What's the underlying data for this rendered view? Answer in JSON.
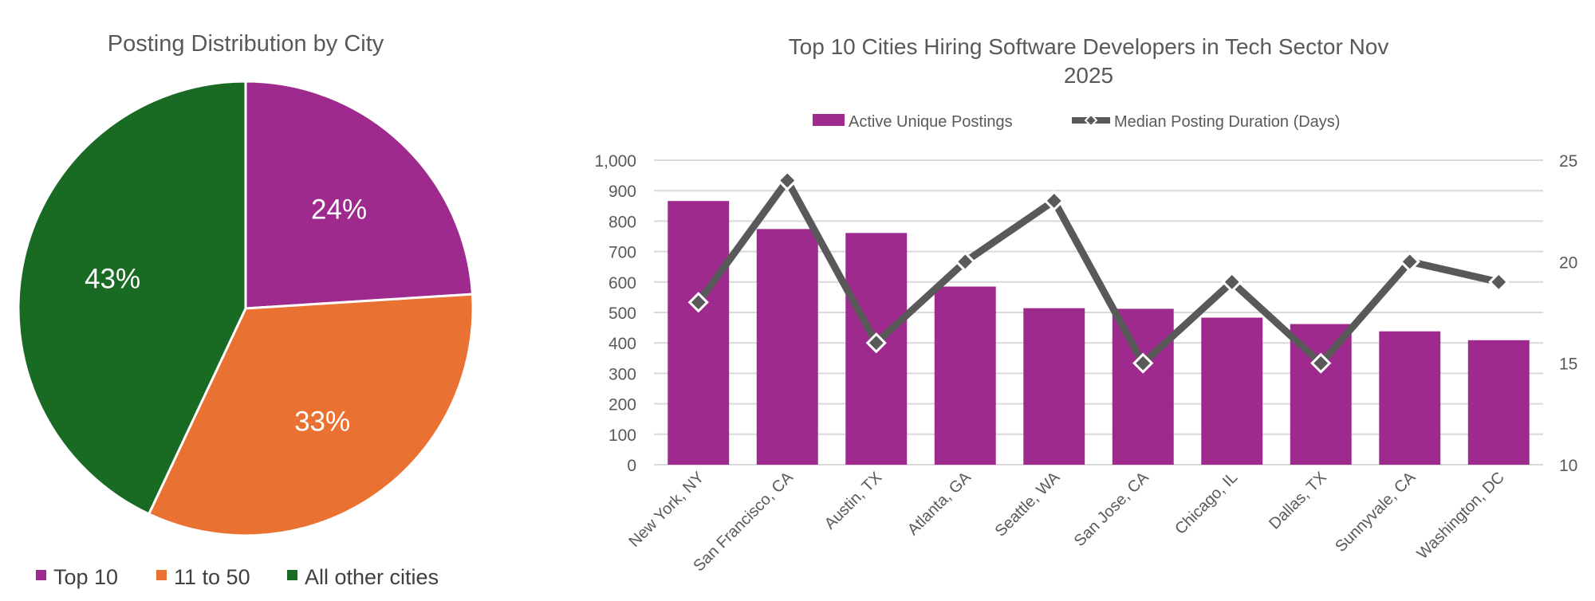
{
  "chart_data": [
    {
      "type": "pie",
      "title": "Posting Distribution by City",
      "categories": [
        "Top 10",
        "11 to 50",
        "All other cities"
      ],
      "values": [
        24,
        33,
        43
      ],
      "data_labels": [
        "24%",
        "33%",
        "43%"
      ],
      "colors": [
        "#9E2A8E",
        "#E97132",
        "#196B24"
      ],
      "legend": "bottom"
    },
    {
      "type": "bar+line",
      "title_lines": [
        "Top 10 Cities Hiring Software Developers in Tech Sector Nov",
        "2025"
      ],
      "categories": [
        "New York, NY",
        "San Francisco, CA",
        "Austin, TX",
        "Atlanta, GA",
        "Seattle, WA",
        "San Jose, CA",
        "Chicago, IL",
        "Dallas, TX",
        "Sunnyvale, CA",
        "Washington, DC"
      ],
      "series": [
        {
          "name": "Active Unique Postings",
          "type": "bar",
          "axis": "left",
          "color": "#9E2A8E",
          "values": [
            866,
            774,
            761,
            585,
            514,
            512,
            483,
            462,
            438,
            409
          ]
        },
        {
          "name": "Median Posting Duration (Days)",
          "type": "line",
          "axis": "right",
          "color": "#595959",
          "values": [
            18,
            24,
            16,
            20,
            23,
            15,
            19,
            15,
            20,
            19
          ]
        }
      ],
      "y_left": {
        "range": [
          0,
          1000
        ],
        "ticks": [
          "0",
          "100",
          "200",
          "300",
          "400",
          "500",
          "600",
          "700",
          "800",
          "900",
          "1,000"
        ]
      },
      "y_right": {
        "range": [
          10,
          25
        ],
        "ticks": [
          "10",
          "15",
          "20",
          "25"
        ]
      },
      "grid": true,
      "legend": "top"
    }
  ]
}
